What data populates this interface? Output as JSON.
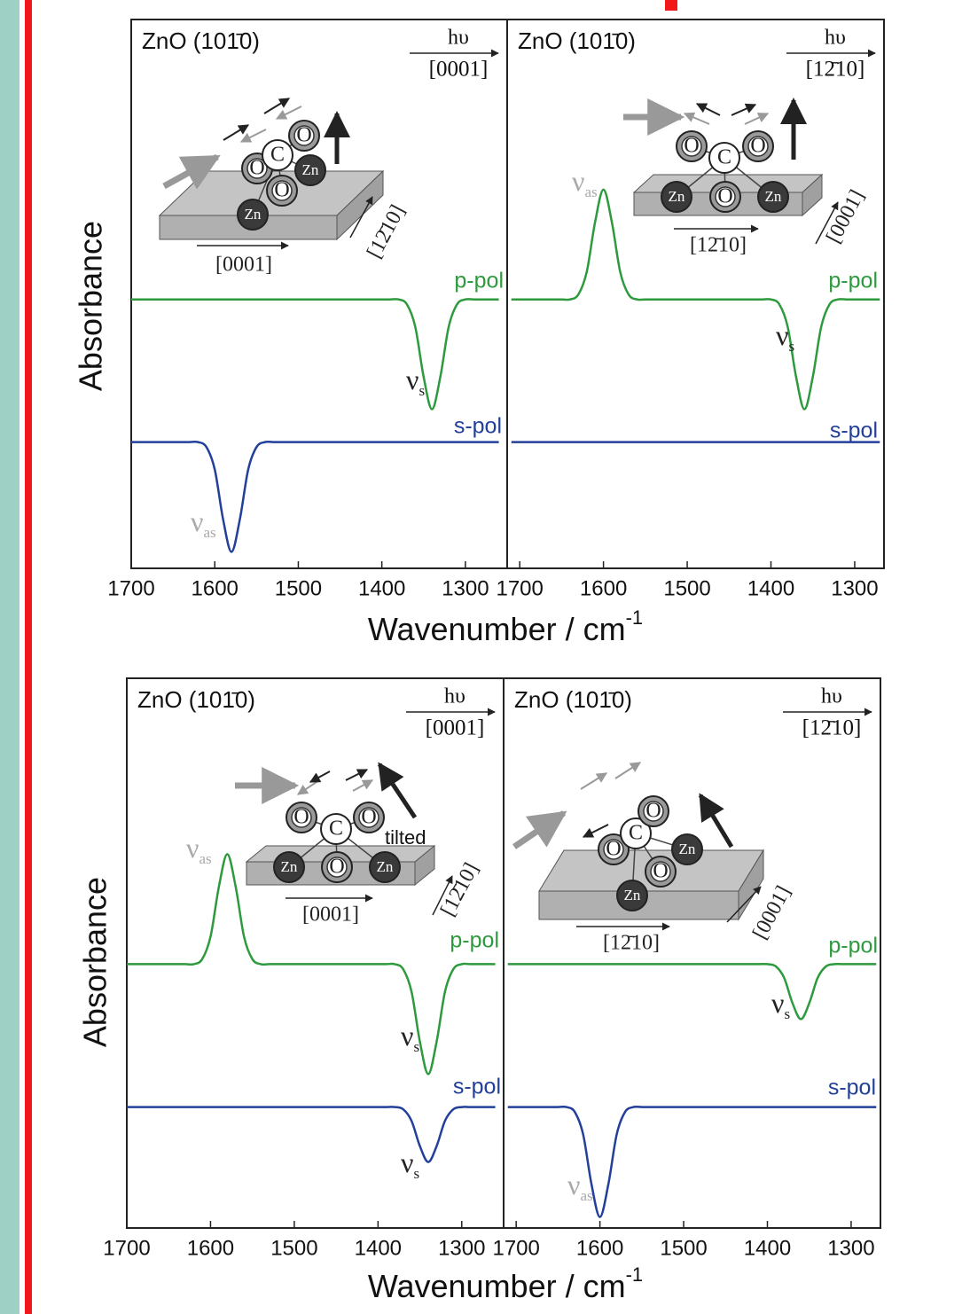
{
  "rows": [
    {
      "ylabel": "Absorbance",
      "xlabel": "Wavenumber / cm",
      "xlabel_sup": "-1"
    },
    {
      "ylabel": "Absorbance",
      "xlabel": "Wavenumber / cm",
      "xlabel_sup": "-1"
    }
  ],
  "chart_data": [
    {
      "type": "line",
      "title": "ZnO (101̄0)",
      "beam": "hυ",
      "beam_direction": "[0001]",
      "xlim": [
        1700,
        1250
      ],
      "ylim": [
        0,
        10
      ],
      "xticks": [
        1700,
        1600,
        1500,
        1400,
        1300
      ],
      "x": [
        1700,
        1690,
        1680,
        1670,
        1660,
        1650,
        1640,
        1630,
        1620,
        1610,
        1600,
        1590,
        1580,
        1570,
        1560,
        1550,
        1540,
        1530,
        1520,
        1510,
        1500,
        1490,
        1480,
        1470,
        1460,
        1450,
        1440,
        1430,
        1420,
        1410,
        1400,
        1390,
        1380,
        1370,
        1360,
        1350,
        1340,
        1330,
        1320,
        1310,
        1300,
        1290,
        1280,
        1270,
        1260
      ],
      "series": [
        {
          "name": "p-pol",
          "color": "#2e9a3e",
          "values": [
            4.9,
            4.9,
            4.9,
            4.9,
            4.9,
            4.9,
            4.9,
            4.9,
            4.9,
            4.9,
            4.9,
            4.9,
            4.9,
            4.9,
            4.9,
            4.9,
            4.9,
            4.9,
            4.9,
            4.9,
            4.9,
            4.9,
            4.9,
            4.9,
            4.9,
            4.9,
            4.9,
            4.9,
            4.9,
            4.9,
            4.9,
            4.9,
            4.9,
            4.81,
            4.4,
            3.49,
            2.9,
            3.49,
            4.4,
            4.81,
            4.9,
            4.9,
            4.9,
            4.9,
            4.9
          ]
        },
        {
          "name": "s-pol",
          "color": "#22409a",
          "values": [
            2.3,
            2.3,
            2.3,
            2.3,
            2.3,
            2.3,
            2.3,
            2.3,
            2.3,
            2.21,
            1.8,
            0.89,
            0.3,
            0.89,
            1.8,
            2.21,
            2.3,
            2.3,
            2.3,
            2.3,
            2.3,
            2.3,
            2.3,
            2.3,
            2.3,
            2.3,
            2.3,
            2.3,
            2.3,
            2.3,
            2.3,
            2.3,
            2.3,
            2.3,
            2.3,
            2.3,
            2.3,
            2.3,
            2.3,
            2.3,
            2.3,
            2.3,
            2.3,
            2.3,
            2.3
          ]
        }
      ],
      "peak_labels": [
        {
          "symbol": "ν",
          "subscript": "s"
        },
        {
          "symbol": "ν",
          "subscript": "as"
        }
      ],
      "atoms": [
        "Zn",
        "O",
        "O",
        "C",
        "O",
        "Zn"
      ],
      "surface_directions": [
        "[0001]",
        "[12̄10]"
      ]
    },
    {
      "type": "line",
      "title": "ZnO (101̄0)",
      "beam": "hυ",
      "beam_direction": "[12̄10]",
      "xlim": [
        1715,
        1265
      ],
      "ylim": [
        0,
        10
      ],
      "xticks": [
        1700,
        1600,
        1500,
        1400,
        1300
      ],
      "x": [
        1710,
        1700,
        1690,
        1680,
        1670,
        1660,
        1650,
        1640,
        1630,
        1620,
        1610,
        1600,
        1590,
        1580,
        1570,
        1560,
        1550,
        1540,
        1530,
        1520,
        1510,
        1500,
        1490,
        1480,
        1470,
        1460,
        1450,
        1440,
        1430,
        1420,
        1410,
        1400,
        1390,
        1380,
        1370,
        1360,
        1350,
        1340,
        1330,
        1320,
        1310,
        1300,
        1290,
        1280,
        1270
      ],
      "series": [
        {
          "name": "p-pol",
          "color": "#2e9a3e",
          "values": [
            4.9,
            4.9,
            4.9,
            4.9,
            4.9,
            4.9,
            4.9,
            4.9,
            4.99,
            5.4,
            6.31,
            6.9,
            6.31,
            5.4,
            4.99,
            4.9,
            4.9,
            4.9,
            4.9,
            4.9,
            4.9,
            4.9,
            4.9,
            4.9,
            4.9,
            4.9,
            4.9,
            4.9,
            4.9,
            4.9,
            4.9,
            4.9,
            4.81,
            4.4,
            3.49,
            2.9,
            3.49,
            4.4,
            4.81,
            4.9,
            4.9,
            4.9,
            4.9,
            4.9,
            4.9
          ]
        },
        {
          "name": "s-pol",
          "color": "#22409a",
          "values": [
            2.3,
            2.3,
            2.3,
            2.3,
            2.3,
            2.3,
            2.3,
            2.3,
            2.3,
            2.3,
            2.3,
            2.3,
            2.3,
            2.3,
            2.3,
            2.3,
            2.3,
            2.3,
            2.3,
            2.3,
            2.3,
            2.3,
            2.3,
            2.3,
            2.3,
            2.3,
            2.3,
            2.3,
            2.3,
            2.3,
            2.3,
            2.3,
            2.3,
            2.3,
            2.3,
            2.3,
            2.3,
            2.3,
            2.3,
            2.3,
            2.3,
            2.3,
            2.3,
            2.3,
            2.3
          ]
        }
      ],
      "peak_labels": [
        {
          "symbol": "ν",
          "subscript": "as"
        },
        {
          "symbol": "ν",
          "subscript": "s"
        }
      ],
      "atoms": [
        "Zn",
        "O",
        "Zn",
        "O",
        "C",
        "O"
      ],
      "surface_directions": [
        "[12̄10]",
        "[0001]"
      ]
    },
    {
      "type": "line",
      "title": "ZnO (101̄0)",
      "beam": "hυ",
      "beam_direction": "[0001]",
      "xlim": [
        1700,
        1250
      ],
      "ylim": [
        0,
        10
      ],
      "xticks": [
        1700,
        1600,
        1500,
        1400,
        1300
      ],
      "x": [
        1700,
        1690,
        1680,
        1670,
        1660,
        1650,
        1640,
        1630,
        1620,
        1610,
        1600,
        1590,
        1580,
        1570,
        1560,
        1550,
        1540,
        1530,
        1520,
        1510,
        1500,
        1490,
        1480,
        1470,
        1460,
        1450,
        1440,
        1430,
        1420,
        1410,
        1400,
        1390,
        1380,
        1370,
        1360,
        1350,
        1340,
        1330,
        1320,
        1310,
        1300,
        1290,
        1280,
        1270,
        1260
      ],
      "series": [
        {
          "name": "p-pol",
          "color": "#2e9a3e",
          "values": [
            4.8,
            4.8,
            4.8,
            4.8,
            4.8,
            4.8,
            4.8,
            4.8,
            4.8,
            4.89,
            5.3,
            6.21,
            6.8,
            6.21,
            5.3,
            4.89,
            4.8,
            4.8,
            4.8,
            4.8,
            4.8,
            4.8,
            4.8,
            4.8,
            4.8,
            4.8,
            4.8,
            4.8,
            4.8,
            4.8,
            4.8,
            4.8,
            4.8,
            4.71,
            4.3,
            3.39,
            2.8,
            3.39,
            4.3,
            4.71,
            4.8,
            4.8,
            4.8,
            4.8,
            4.8
          ]
        },
        {
          "name": "s-pol",
          "color": "#22409a",
          "values": [
            2.2,
            2.2,
            2.2,
            2.2,
            2.2,
            2.2,
            2.2,
            2.2,
            2.2,
            2.2,
            2.2,
            2.2,
            2.2,
            2.2,
            2.2,
            2.2,
            2.2,
            2.2,
            2.2,
            2.2,
            2.2,
            2.2,
            2.2,
            2.2,
            2.2,
            2.2,
            2.2,
            2.2,
            2.2,
            2.2,
            2.2,
            2.2,
            2.2,
            2.16,
            1.95,
            1.49,
            1.2,
            1.49,
            1.95,
            2.16,
            2.2,
            2.2,
            2.2,
            2.2,
            2.2
          ]
        }
      ],
      "peak_labels": [
        {
          "symbol": "ν",
          "subscript": "as"
        },
        {
          "symbol": "ν",
          "subscript": "s"
        },
        {
          "symbol": "ν",
          "subscript": "s"
        }
      ],
      "atoms": [
        "Zn",
        "O",
        "Zn",
        "O",
        "C",
        "O"
      ],
      "tilt_label": "tilted",
      "surface_directions": [
        "[0001]",
        "[12̄10]"
      ]
    },
    {
      "type": "line",
      "title": "ZnO (101̄0)",
      "beam": "hυ",
      "beam_direction": "[12̄10]",
      "xlim": [
        1715,
        1265
      ],
      "ylim": [
        0,
        10
      ],
      "xticks": [
        1700,
        1600,
        1500,
        1400,
        1300
      ],
      "x": [
        1710,
        1700,
        1690,
        1680,
        1670,
        1660,
        1650,
        1640,
        1630,
        1620,
        1610,
        1600,
        1590,
        1580,
        1570,
        1560,
        1550,
        1540,
        1530,
        1520,
        1510,
        1500,
        1490,
        1480,
        1470,
        1460,
        1450,
        1440,
        1430,
        1420,
        1410,
        1400,
        1390,
        1380,
        1370,
        1360,
        1350,
        1340,
        1330,
        1320,
        1310,
        1300,
        1290,
        1280,
        1270
      ],
      "series": [
        {
          "name": "p-pol",
          "color": "#2e9a3e",
          "values": [
            4.8,
            4.8,
            4.8,
            4.8,
            4.8,
            4.8,
            4.8,
            4.8,
            4.8,
            4.8,
            4.8,
            4.8,
            4.8,
            4.8,
            4.8,
            4.8,
            4.8,
            4.8,
            4.8,
            4.8,
            4.8,
            4.8,
            4.8,
            4.8,
            4.8,
            4.8,
            4.8,
            4.8,
            4.8,
            4.8,
            4.8,
            4.8,
            4.76,
            4.55,
            4.09,
            3.8,
            4.09,
            4.55,
            4.76,
            4.8,
            4.8,
            4.8,
            4.8,
            4.8,
            4.8
          ]
        },
        {
          "name": "s-pol",
          "color": "#22409a",
          "values": [
            2.2,
            2.2,
            2.2,
            2.2,
            2.2,
            2.2,
            2.2,
            2.2,
            2.11,
            1.7,
            0.79,
            0.2,
            0.79,
            1.7,
            2.11,
            2.2,
            2.2,
            2.2,
            2.2,
            2.2,
            2.2,
            2.2,
            2.2,
            2.2,
            2.2,
            2.2,
            2.2,
            2.2,
            2.2,
            2.2,
            2.2,
            2.2,
            2.2,
            2.2,
            2.2,
            2.2,
            2.2,
            2.2,
            2.2,
            2.2,
            2.2,
            2.2,
            2.2,
            2.2,
            2.2
          ]
        }
      ],
      "peak_labels": [
        {
          "symbol": "ν",
          "subscript": "s"
        },
        {
          "symbol": "ν",
          "subscript": "as"
        }
      ],
      "atoms": [
        "Zn",
        "O",
        "O",
        "C",
        "O",
        "Zn"
      ],
      "surface_directions": [
        "[12̄10]",
        "[0001]"
      ]
    }
  ]
}
